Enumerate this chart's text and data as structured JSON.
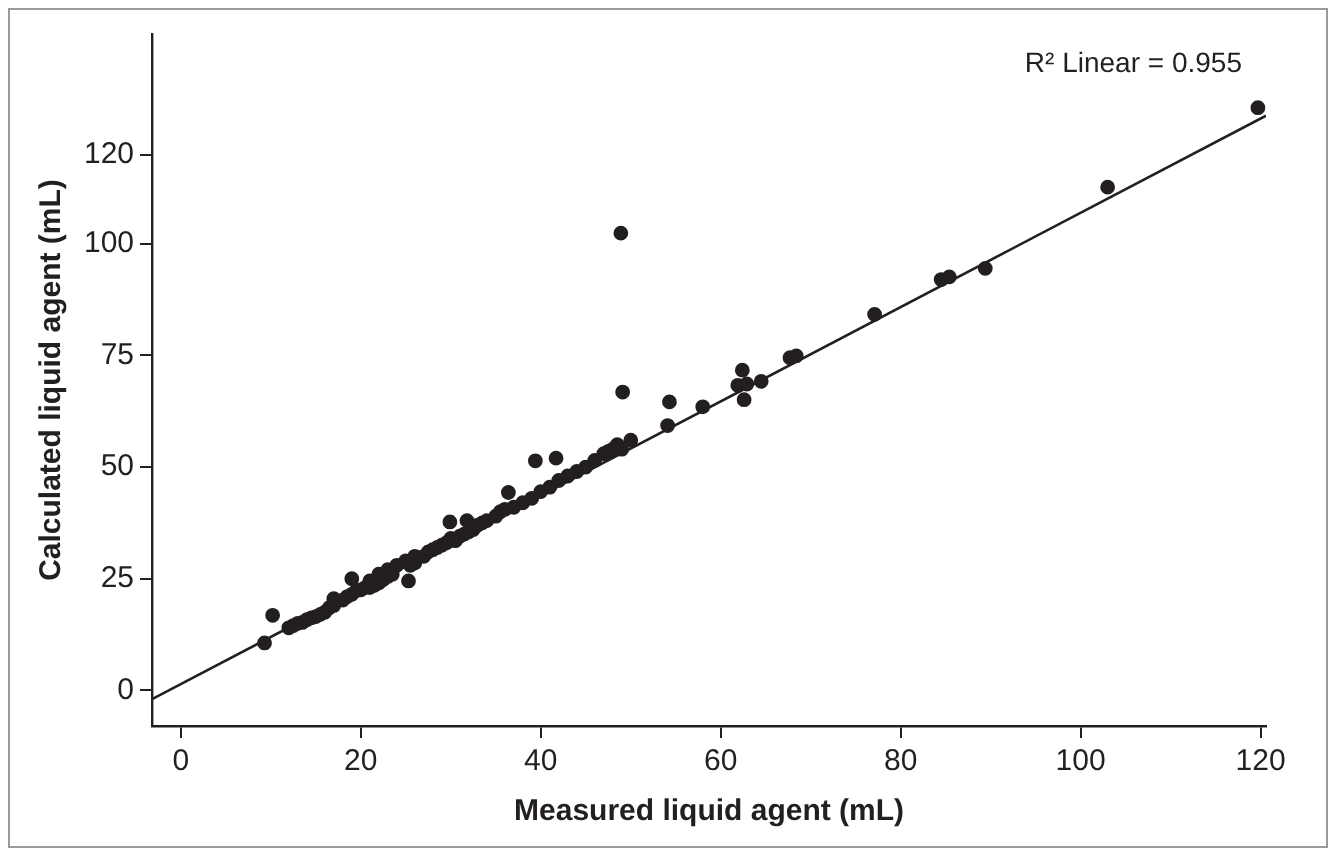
{
  "chart_data": {
    "type": "scatter",
    "xlabel": "Measured liquid agent (mL)",
    "ylabel": "Calculated liquid agent (mL)",
    "annotations": [
      "R² Linear = 0.955"
    ],
    "xlim": [
      -3.2,
      120.6
    ],
    "ylim": [
      -8,
      147
    ],
    "xticks": [
      0,
      20,
      40,
      60,
      80,
      100,
      120
    ],
    "yticks": [
      0,
      25,
      50,
      75,
      100,
      120
    ],
    "grid": false,
    "legend": false,
    "marker": "circle",
    "series": [
      {
        "color": "#231f20",
        "x": [
          9.3,
          10.2,
          12,
          12.5,
          13,
          13.5,
          14,
          14.5,
          15,
          15.5,
          16,
          16.5,
          17,
          17,
          18,
          18.5,
          19,
          19.5,
          19,
          20,
          20.5,
          21,
          21,
          21.5,
          22,
          22,
          22.5,
          23,
          23,
          23.5,
          24,
          25,
          25.3,
          25.5,
          26,
          26,
          27,
          27.5,
          28,
          28.5,
          29,
          29.5,
          29.9,
          30,
          30.5,
          31,
          31.5,
          31.8,
          32,
          32.5,
          33,
          33.5,
          34,
          35,
          35.5,
          36,
          36.4,
          37,
          38,
          39,
          39.4,
          40,
          41,
          41.7,
          42,
          43,
          44,
          45,
          46,
          47,
          47.5,
          48,
          48.5,
          48.9,
          49,
          49.1,
          50,
          54.1,
          54.3,
          58,
          61.9,
          62.4,
          62.6,
          62.9,
          64.5,
          67.7,
          68.4,
          77.1,
          84.5,
          85.4,
          89.4,
          103,
          119.7
        ],
        "values": [
          10.6,
          16.8,
          14,
          14.5,
          15,
          15.2,
          15.8,
          16.2,
          16.5,
          17,
          17.5,
          18.5,
          19,
          20.5,
          20.2,
          21,
          21.5,
          22.3,
          25,
          22.5,
          23,
          23,
          24.5,
          23.5,
          24,
          26,
          24.8,
          25.5,
          27,
          26,
          28,
          29,
          24.5,
          28,
          28.5,
          30,
          30,
          31,
          31.5,
          32,
          32.5,
          33,
          37.7,
          34,
          33.5,
          34.5,
          35,
          38,
          35.5,
          36,
          37,
          37.5,
          38,
          39,
          40,
          40.5,
          44.3,
          41,
          42,
          43,
          51.4,
          44.5,
          45.5,
          52,
          47,
          48,
          49,
          50,
          51.5,
          53,
          53.5,
          54,
          55,
          102.4,
          54,
          66.8,
          56,
          59.3,
          64.6,
          63.5,
          68.3,
          71.7,
          65.1,
          68.6,
          69.2,
          74.5,
          74.9,
          84.2,
          92,
          92.6,
          94.5,
          112.7,
          130.5
        ]
      },
      {
        "type": "line",
        "color": "#231f20",
        "marker": "none",
        "x": [
          -3.2,
          120.6
        ],
        "values": [
          -2,
          128.7
        ]
      }
    ]
  }
}
